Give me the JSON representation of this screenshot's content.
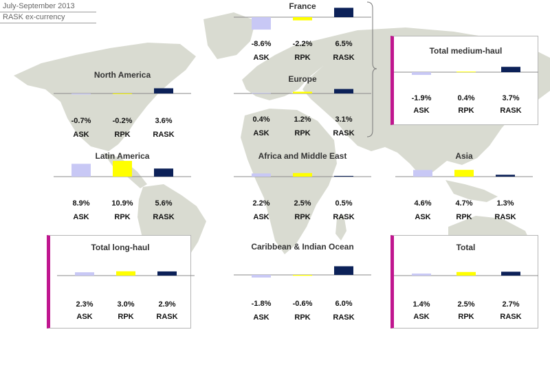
{
  "header": {
    "period": "July-September 2013",
    "subtitle": "RASK ex-currency"
  },
  "colors": {
    "ask": "#c8c8f5",
    "rpk": "#ffff00",
    "rask": "#0c2158",
    "accent": "#c0168f",
    "map": "#d9dbd1"
  },
  "chart_data": [
    {
      "type": "bar",
      "title": "France",
      "categories": [
        "ASK",
        "RPK",
        "RASK"
      ],
      "values": [
        -8.6,
        -2.2,
        6.5
      ],
      "labels": [
        "-8.6%",
        "-2.2%",
        "6.5%"
      ]
    },
    {
      "type": "bar",
      "title": "North America",
      "categories": [
        "ASK",
        "RPK",
        "RASK"
      ],
      "values": [
        -0.7,
        -0.2,
        3.6
      ],
      "labels": [
        "-0.7%",
        "-0.2%",
        "3.6%"
      ]
    },
    {
      "type": "bar",
      "title": "Europe",
      "categories": [
        "ASK",
        "RPK",
        "RASK"
      ],
      "values": [
        0.4,
        1.2,
        3.1
      ],
      "labels": [
        "0.4%",
        "1.2%",
        "3.1%"
      ]
    },
    {
      "type": "bar",
      "title": "Total medium-haul",
      "categories": [
        "ASK",
        "RPK",
        "RASK"
      ],
      "values": [
        -1.9,
        0.4,
        3.7
      ],
      "labels": [
        "-1.9%",
        "0.4%",
        "3.7%"
      ]
    },
    {
      "type": "bar",
      "title": "Latin America",
      "categories": [
        "ASK",
        "RPK",
        "RASK"
      ],
      "values": [
        8.9,
        10.9,
        5.6
      ],
      "labels": [
        "8.9%",
        "10.9%",
        "5.6%"
      ]
    },
    {
      "type": "bar",
      "title": "Africa and Middle East",
      "categories": [
        "ASK",
        "RPK",
        "RASK"
      ],
      "values": [
        2.2,
        2.5,
        0.5
      ],
      "labels": [
        "2.2%",
        "2.5%",
        "0.5%"
      ]
    },
    {
      "type": "bar",
      "title": "Asia",
      "categories": [
        "ASK",
        "RPK",
        "RASK"
      ],
      "values": [
        4.6,
        4.7,
        1.3
      ],
      "labels": [
        "4.6%",
        "4.7%",
        "1.3%"
      ]
    },
    {
      "type": "bar",
      "title": "Total long-haul",
      "categories": [
        "ASK",
        "RPK",
        "RASK"
      ],
      "values": [
        2.3,
        3.0,
        2.9
      ],
      "labels": [
        "2.3%",
        "3.0%",
        "2.9%"
      ]
    },
    {
      "type": "bar",
      "title": "Caribbean & Indian Ocean",
      "categories": [
        "ASK",
        "RPK",
        "RASK"
      ],
      "values": [
        -1.8,
        -0.6,
        6.0
      ],
      "labels": [
        "-1.8%",
        "-0.6%",
        "6.0%"
      ]
    },
    {
      "type": "bar",
      "title": "Total",
      "categories": [
        "ASK",
        "RPK",
        "RASK"
      ],
      "values": [
        1.4,
        2.5,
        2.7
      ],
      "labels": [
        "1.4%",
        "2.5%",
        "2.7%"
      ]
    }
  ]
}
